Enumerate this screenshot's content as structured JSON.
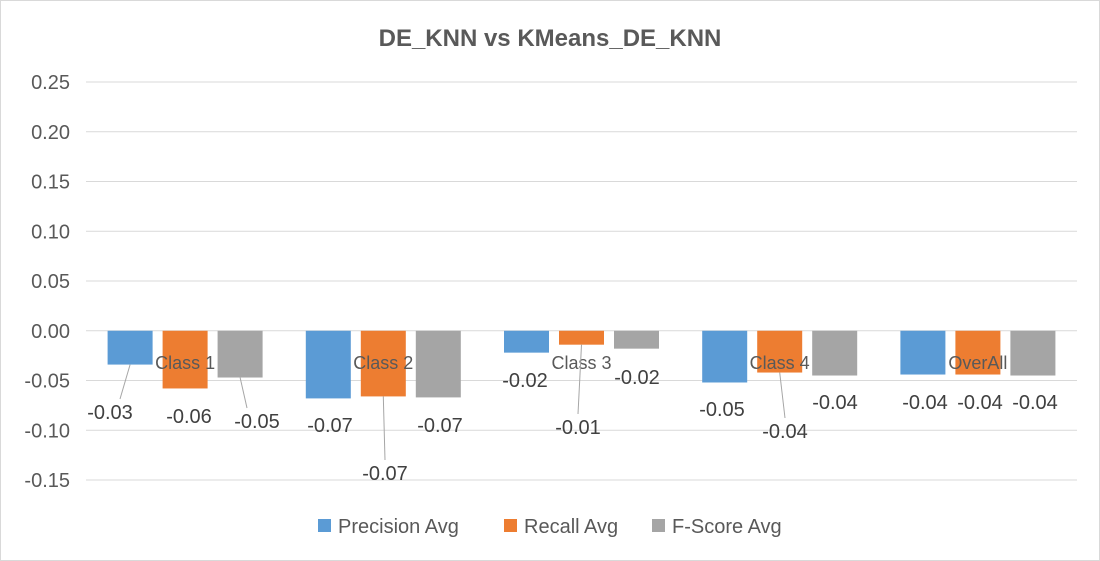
{
  "chart_data": {
    "type": "bar",
    "title": "DE_KNN vs KMeans_DE_KNN",
    "categories": [
      "Class 1",
      "Class 2",
      "Class 3",
      "Class 4",
      "OverAll"
    ],
    "series": [
      {
        "name": "Precision Avg",
        "color": "#5B9BD5",
        "values": [
          -0.034,
          -0.068,
          -0.022,
          -0.052,
          -0.044
        ],
        "labels": [
          "-0.03",
          "-0.07",
          "-0.02",
          "-0.05",
          "-0.04"
        ]
      },
      {
        "name": "Recall Avg",
        "color": "#ED7D31",
        "values": [
          -0.058,
          -0.066,
          -0.014,
          -0.042,
          -0.044
        ],
        "labels": [
          "-0.06",
          "-0.07",
          "-0.01",
          "-0.04",
          "-0.04"
        ]
      },
      {
        "name": "F-Score Avg",
        "color": "#A5A5A5",
        "values": [
          -0.047,
          -0.067,
          -0.018,
          -0.045,
          -0.045
        ],
        "labels": [
          "-0.05",
          "-0.07",
          "-0.02",
          "-0.04",
          "-0.04"
        ]
      }
    ],
    "ylim": [
      -0.15,
      0.25
    ],
    "yticks": [
      "0.25",
      "0.20",
      "0.15",
      "0.10",
      "0.05",
      "0.00",
      "-0.05",
      "-0.10",
      "-0.15"
    ],
    "ytick_values": [
      0.25,
      0.2,
      0.15,
      0.1,
      0.05,
      0,
      -0.05,
      -0.1,
      -0.15
    ],
    "grid": true,
    "legend_position": "bottom",
    "xlabel": "",
    "ylabel": ""
  }
}
